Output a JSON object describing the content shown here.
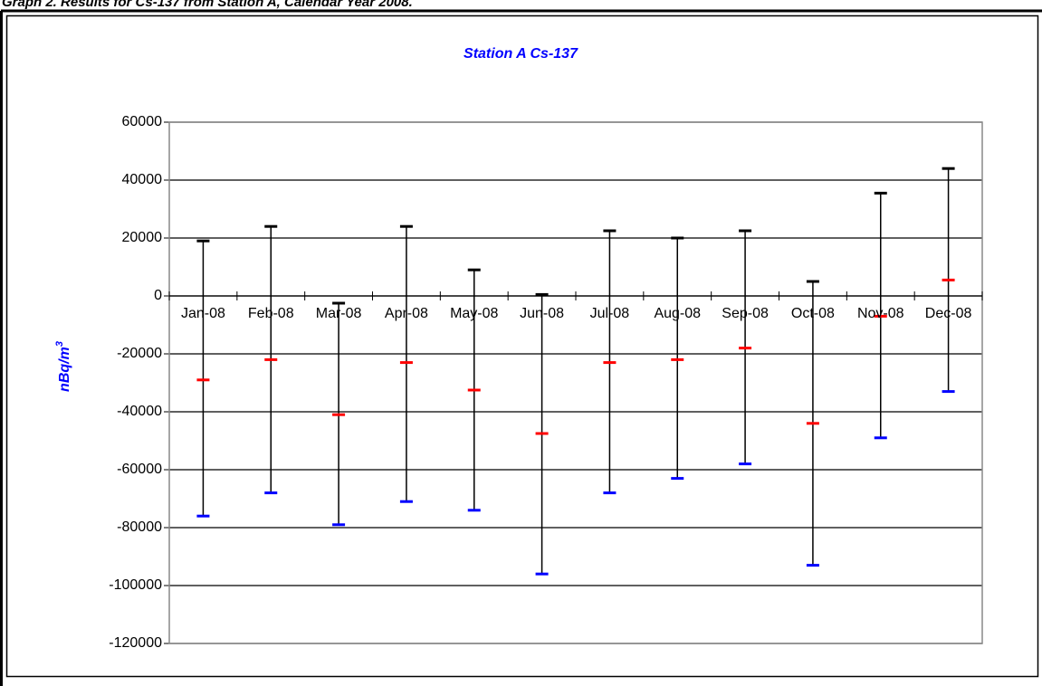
{
  "caption": "Graph 2. Results for Cs-137 from Station A, Calendar Year 2008.",
  "chart_data": {
    "type": "hilo",
    "title": "Station A Cs-137",
    "y_label": "nBq/m",
    "y_label_sup": "3",
    "categories": [
      "Jan-08",
      "Feb-08",
      "Mar-08",
      "Apr-08",
      "May-08",
      "Jun-08",
      "Jul-08",
      "Aug-08",
      "Sep-08",
      "Oct-08",
      "Nov-08",
      "Dec-08"
    ],
    "series": [
      {
        "color": "#000000",
        "values": [
          19000,
          24000,
          -2500,
          24000,
          9000,
          500,
          22500,
          20000,
          22500,
          5000,
          35500,
          44000
        ]
      },
      {
        "color": "#ff0000",
        "values": [
          -29000,
          -22000,
          -41000,
          -23000,
          -32500,
          -47500,
          -23000,
          -22000,
          -18000,
          -44000,
          -7000,
          5500
        ]
      },
      {
        "color": "#0000ff",
        "values": [
          -76000,
          -68000,
          -79000,
          -71000,
          -74000,
          -96000,
          -68000,
          -63000,
          -58000,
          -93000,
          -49000,
          -33000
        ]
      }
    ],
    "ylim": [
      -120000,
      60000
    ],
    "yticks": [
      -120000,
      -100000,
      -80000,
      -60000,
      -40000,
      -20000,
      0,
      20000,
      40000,
      60000
    ],
    "grid": true,
    "title_color": "#0000ff"
  }
}
